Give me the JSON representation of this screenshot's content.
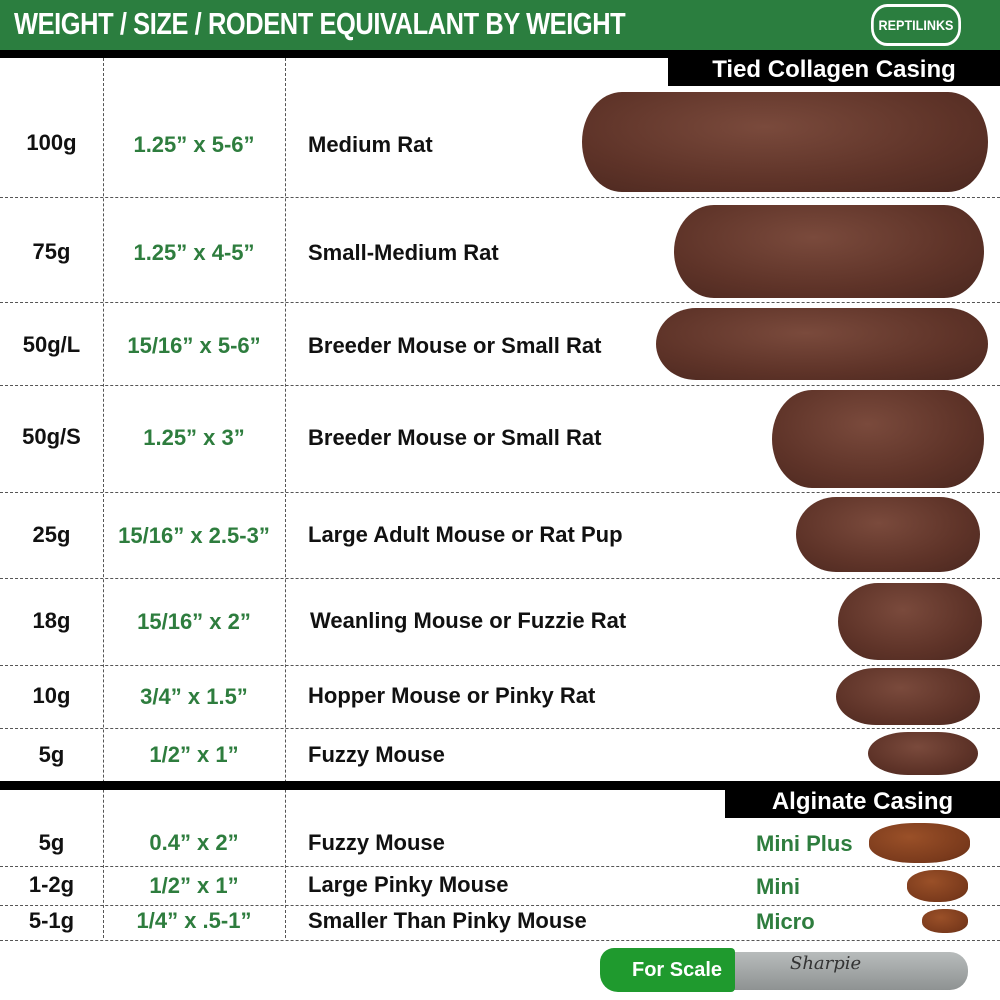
{
  "header": {
    "title": "WEIGHT / SIZE / RODENT EQUIVALANT BY WEIGHT",
    "logo_text": "REPTILINKS",
    "color": "#2b7e3f"
  },
  "collagen": {
    "label": "Tied Collagen Casing",
    "rows": [
      {
        "weight": "100g",
        "size": "1.25” x 5-6”",
        "rodent": "Medium Rat"
      },
      {
        "weight": "75g",
        "size": "1.25” x 4-5”",
        "rodent": "Small-Medium Rat"
      },
      {
        "weight": "50g/L",
        "size": "15/16” x 5-6”",
        "rodent": "Breeder Mouse or Small Rat"
      },
      {
        "weight": "50g/S",
        "size": "1.25” x 3”",
        "rodent": "Breeder Mouse or Small Rat"
      },
      {
        "weight": "25g",
        "size": "15/16” x 2.5-3”",
        "rodent": "Large Adult Mouse or Rat Pup"
      },
      {
        "weight": "18g",
        "size": "15/16” x 2”",
        "rodent": "Weanling Mouse or Fuzzie Rat"
      },
      {
        "weight": "10g",
        "size": "3/4” x 1.5”",
        "rodent": "Hopper Mouse or Pinky Rat"
      },
      {
        "weight": "5g",
        "size": "1/2” x 1”",
        "rodent": "Fuzzy Mouse"
      }
    ]
  },
  "alginate": {
    "label": "Alginate Casing",
    "rows": [
      {
        "weight": "5g",
        "size": "0.4” x 2”",
        "rodent": "Fuzzy Mouse",
        "type": "Mini Plus"
      },
      {
        "weight": "1-2g",
        "size": "1/2” x 1”",
        "rodent": "Large Pinky Mouse",
        "type": "Mini"
      },
      {
        "weight": "5-1g",
        "size": "1/4” x .5-1”",
        "rodent": "Smaller Than Pinky Mouse",
        "type": "Micro"
      }
    ]
  },
  "scale": {
    "label": "For Scale",
    "brand": "Sharpie"
  }
}
